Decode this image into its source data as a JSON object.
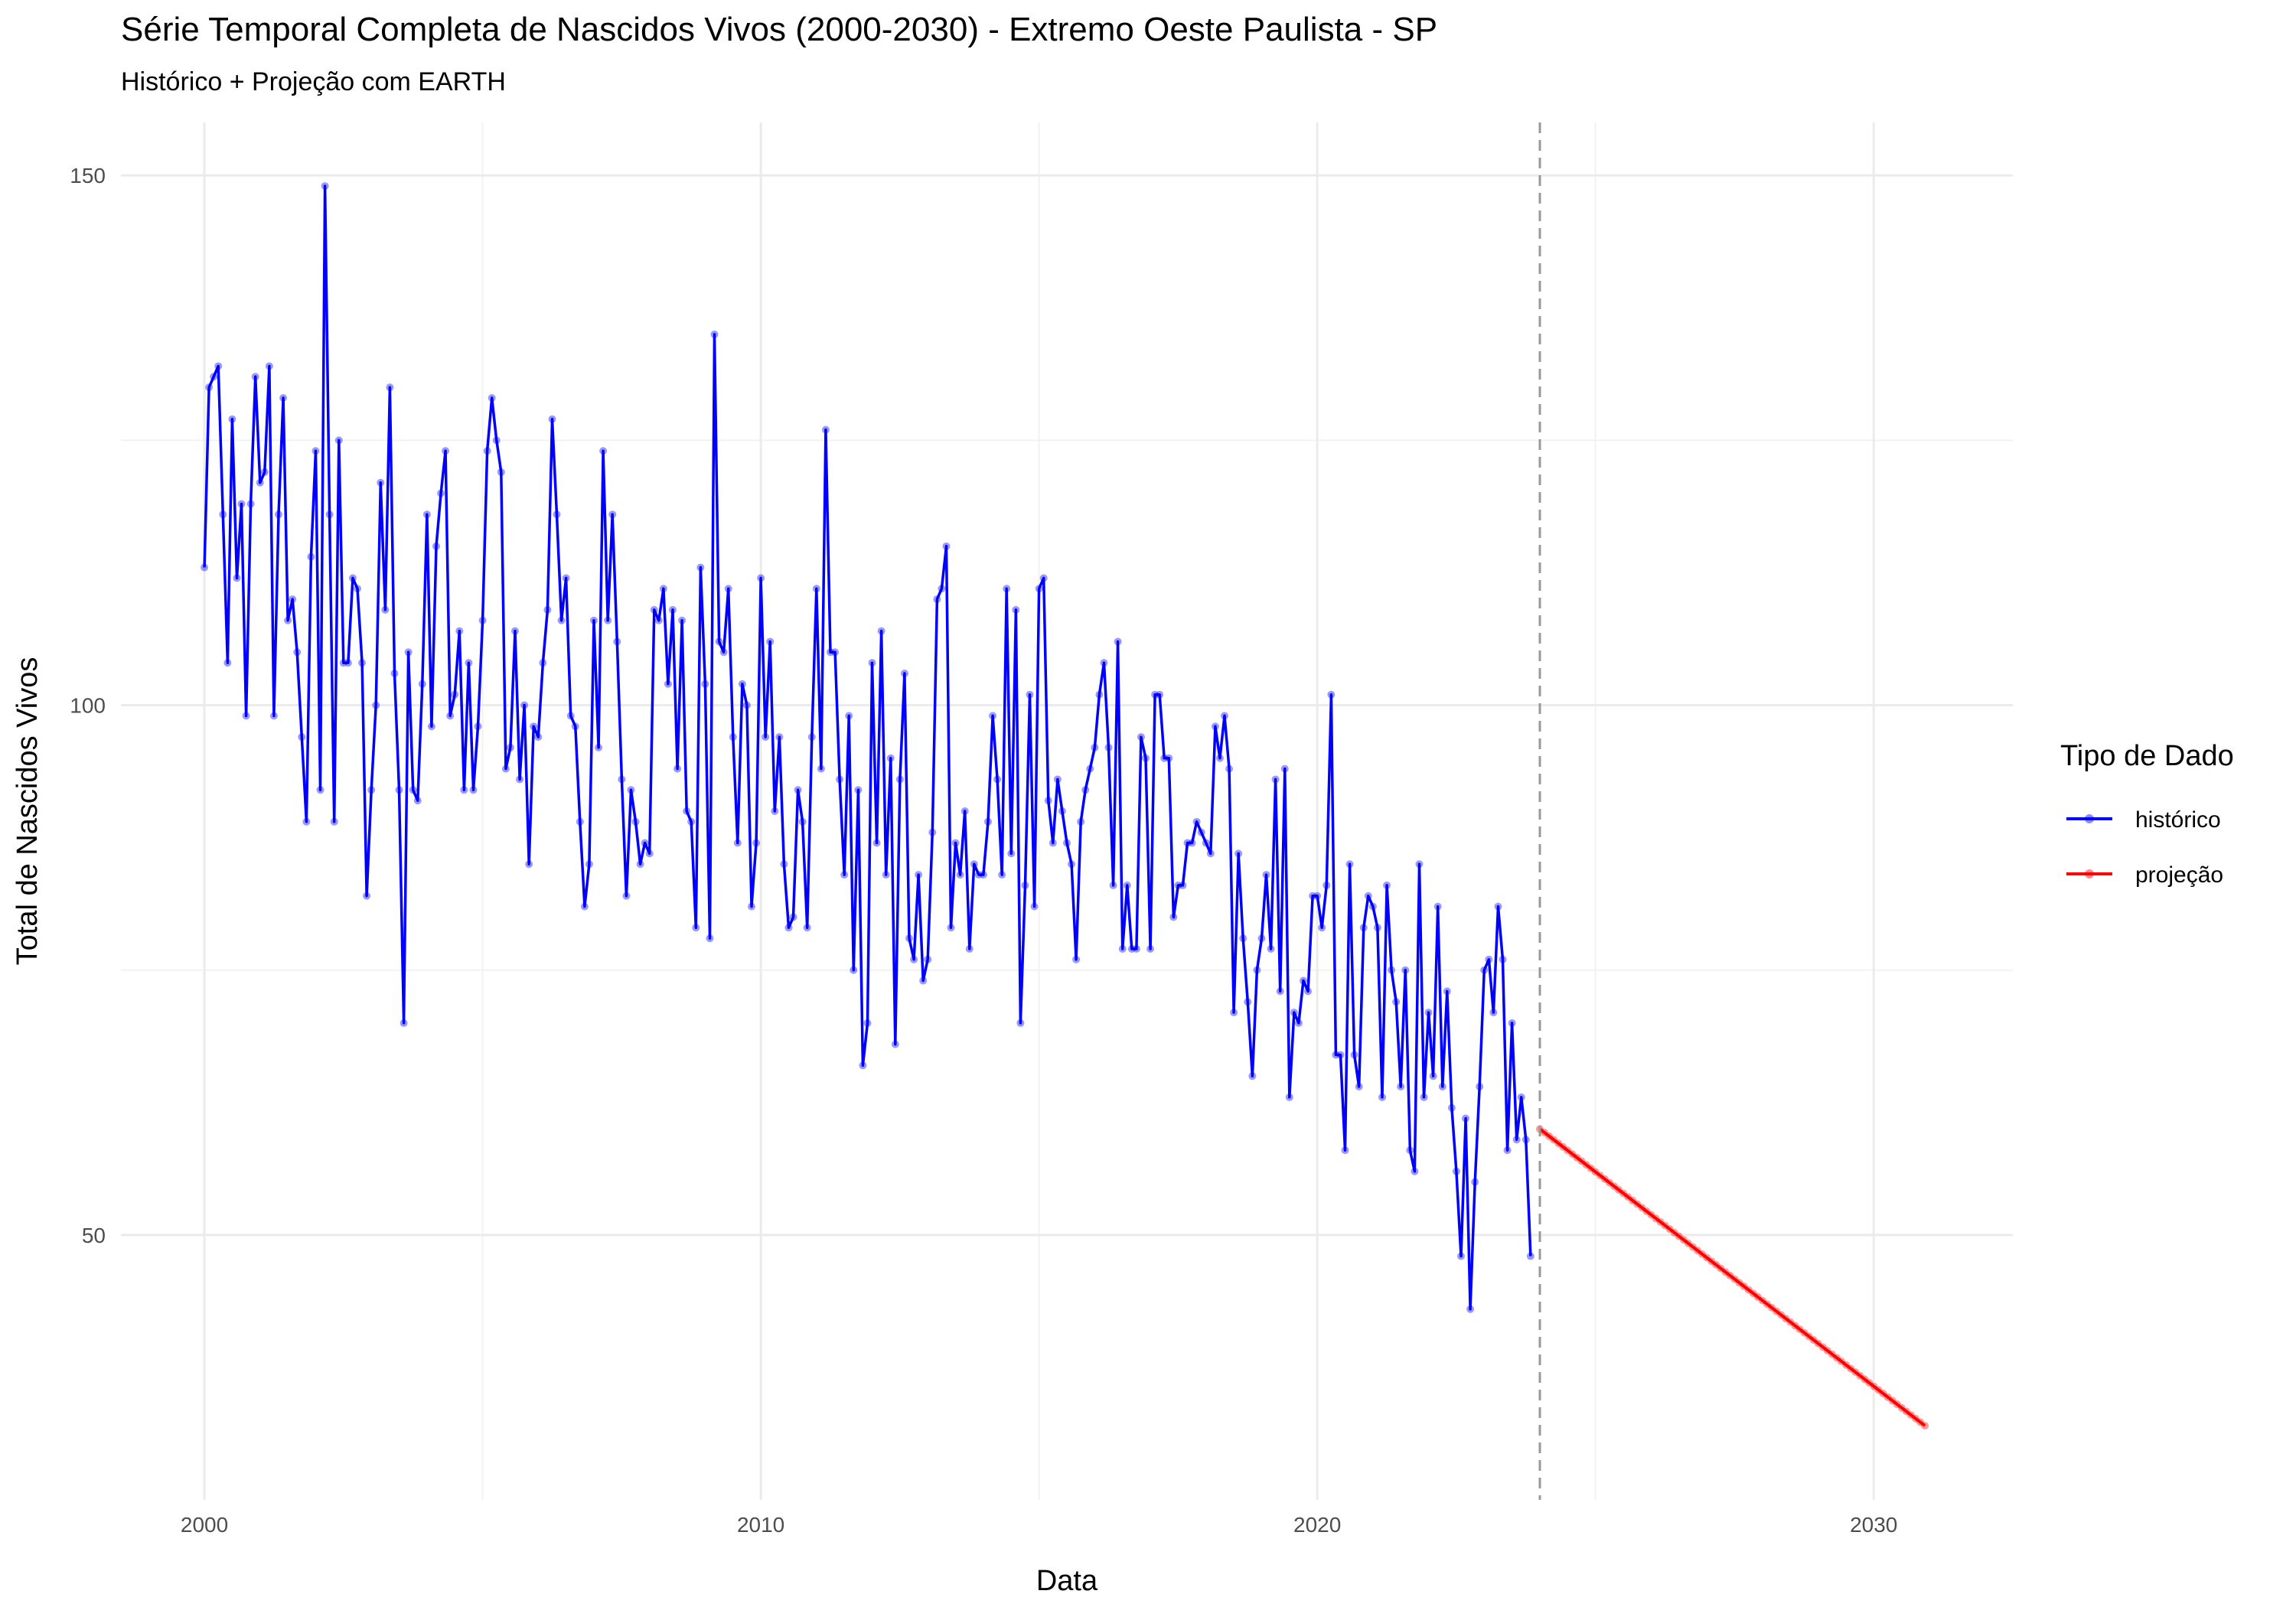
{
  "chart_data": {
    "type": "line",
    "title": "Série Temporal Completa de Nascidos Vivos (2000-2030) -  Extremo Oeste Paulista - SP",
    "subtitle": "Histórico + Projeção com EARTH",
    "xlabel": "Data",
    "ylabel": "Total de Nascidos Vivos",
    "xlim": [
      1998.5,
      2032.5
    ],
    "ylim": [
      25,
      155
    ],
    "x_ticks": [
      2000,
      2010,
      2020,
      2030
    ],
    "y_ticks": [
      50,
      100,
      150
    ],
    "grid": true,
    "legend": {
      "title": "Tipo de Dado",
      "placement": "right"
    },
    "reference_line": {
      "x": 2024.0,
      "style": "dashed",
      "color": "#999999"
    },
    "series": [
      {
        "name": "histórico",
        "color": "#0000ff",
        "start": 2000.0,
        "step_months": 1,
        "values": [
          113,
          130,
          131,
          132,
          118,
          104,
          127,
          112,
          119,
          99,
          119,
          131,
          121,
          122,
          132,
          99,
          118,
          129,
          108,
          110,
          105,
          97,
          89,
          114,
          124,
          92,
          149,
          118,
          89,
          125,
          104,
          104,
          112,
          111,
          104,
          82,
          92,
          100,
          121,
          109,
          130,
          103,
          92,
          70,
          105,
          92,
          91,
          102,
          118,
          98,
          115,
          120,
          124,
          99,
          101,
          107,
          92,
          104,
          92,
          98,
          108,
          124,
          129,
          125,
          122,
          94,
          96,
          107,
          93,
          100,
          85,
          98,
          97,
          104,
          109,
          127,
          118,
          108,
          112,
          99,
          98,
          89,
          81,
          85,
          108,
          96,
          124,
          108,
          118,
          106,
          93,
          82,
          92,
          89,
          85,
          87,
          86,
          109,
          108,
          111,
          102,
          109,
          94,
          108,
          90,
          89,
          79,
          113,
          102,
          78,
          135,
          106,
          105,
          111,
          97,
          87,
          102,
          100,
          81,
          87,
          112,
          97,
          106,
          90,
          97,
          85,
          79,
          80,
          92,
          89,
          79,
          97,
          111,
          94,
          126,
          105,
          105,
          93,
          84,
          99,
          75,
          92,
          66,
          70,
          104,
          87,
          107,
          84,
          95,
          68,
          93,
          103,
          78,
          76,
          84,
          74,
          76,
          88,
          110,
          111,
          115,
          79,
          87,
          84,
          90,
          77,
          85,
          84,
          84,
          89,
          99,
          93,
          84,
          111,
          86,
          109,
          70,
          83,
          101,
          81,
          111,
          112,
          91,
          87,
          93,
          90,
          87,
          85,
          76,
          89,
          92,
          94,
          96,
          101,
          104,
          96,
          83,
          106,
          77,
          83,
          77,
          77,
          97,
          95,
          77,
          101,
          101,
          95,
          95,
          80,
          83,
          83,
          87,
          87,
          89,
          88,
          87,
          86,
          98,
          95,
          99,
          94,
          71,
          86,
          78,
          72,
          65,
          75,
          78,
          84,
          77,
          93,
          73,
          94,
          63,
          71,
          70,
          74,
          73,
          82,
          82,
          79,
          83,
          101,
          67,
          67,
          58,
          85,
          67,
          64,
          79,
          82,
          81,
          79,
          63,
          83,
          75,
          72,
          64,
          75,
          58,
          56,
          85,
          63,
          71,
          65,
          81,
          64,
          73,
          62,
          56,
          48,
          61,
          43,
          55,
          64,
          75,
          76,
          71,
          81,
          76,
          58,
          70,
          59,
          63,
          59,
          48
        ]
      },
      {
        "name": "projeção",
        "color": "#ff0000",
        "x_range": [
          2024.0,
          2030.92
        ],
        "y_range": [
          60,
          32
        ]
      }
    ]
  }
}
